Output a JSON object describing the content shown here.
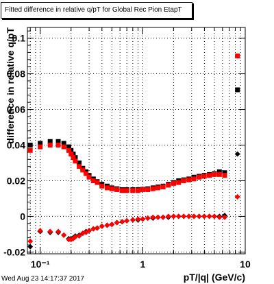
{
  "chart_data": {
    "type": "scatter",
    "title": "Fitted difference in relative q/pT for Global Rec Pion EtapT",
    "xlabel": "pT/|q| (GeV/c)",
    "ylabel": "difference in relative q/pT",
    "x_scale": "log",
    "xlim": [
      0.075,
      10
    ],
    "ylim": [
      -0.021,
      0.106
    ],
    "grid": true,
    "legend": "none",
    "x_ticks": [
      {
        "value": 0.1,
        "label": "10⁻¹"
      },
      {
        "value": 1,
        "label": "1"
      },
      {
        "value": 10,
        "label": "10"
      }
    ],
    "y_ticks": [
      {
        "value": -0.02,
        "label": "-0.02"
      },
      {
        "value": 0,
        "label": "0"
      },
      {
        "value": 0.02,
        "label": "0.02"
      },
      {
        "value": 0.04,
        "label": "0.04"
      },
      {
        "value": 0.06,
        "label": "0.06"
      },
      {
        "value": 0.08,
        "label": "0.08"
      },
      {
        "value": 0.1,
        "label": "0.1"
      }
    ],
    "colors": {
      "black": "#000000",
      "red": "#ff0000"
    },
    "series": [
      {
        "color": "black",
        "marker": "square",
        "x": [
          0.08,
          0.1,
          0.125,
          0.15,
          0.17,
          0.19,
          0.2,
          0.21,
          0.22,
          0.24,
          0.26,
          0.28,
          0.3,
          0.33,
          0.36,
          0.4,
          0.45,
          0.5,
          0.56,
          0.63,
          0.7,
          0.8,
          0.9,
          1.0,
          1.12,
          1.26,
          1.41,
          1.58,
          1.78,
          2.0,
          2.24,
          2.51,
          2.82,
          3.16,
          3.55,
          3.98,
          4.47,
          5.0,
          5.6,
          6.3,
          8.4
        ],
        "y": [
          0.04,
          0.041,
          0.042,
          0.042,
          0.041,
          0.039,
          0.037,
          0.035,
          0.033,
          0.03,
          0.027,
          0.025,
          0.023,
          0.021,
          0.0195,
          0.018,
          0.017,
          0.016,
          0.0155,
          0.015,
          0.015,
          0.015,
          0.015,
          0.0152,
          0.0155,
          0.016,
          0.0165,
          0.017,
          0.018,
          0.019,
          0.02,
          0.0205,
          0.021,
          0.022,
          0.0225,
          0.023,
          0.0235,
          0.024,
          0.025,
          0.0245,
          0.071
        ]
      },
      {
        "color": "red",
        "marker": "square",
        "x": [
          0.08,
          0.1,
          0.125,
          0.15,
          0.17,
          0.19,
          0.2,
          0.21,
          0.22,
          0.24,
          0.26,
          0.28,
          0.3,
          0.33,
          0.36,
          0.4,
          0.45,
          0.5,
          0.56,
          0.63,
          0.7,
          0.8,
          0.9,
          1.0,
          1.12,
          1.26,
          1.41,
          1.58,
          1.78,
          2.0,
          2.24,
          2.51,
          2.82,
          3.16,
          3.55,
          3.98,
          4.47,
          5.0,
          5.6,
          6.3,
          8.4
        ],
        "y": [
          0.037,
          0.039,
          0.04,
          0.04,
          0.039,
          0.037,
          0.035,
          0.033,
          0.031,
          0.028,
          0.026,
          0.024,
          0.022,
          0.02,
          0.019,
          0.017,
          0.016,
          0.0155,
          0.015,
          0.0145,
          0.0145,
          0.0145,
          0.0145,
          0.015,
          0.015,
          0.0155,
          0.016,
          0.0165,
          0.0175,
          0.0185,
          0.019,
          0.02,
          0.0205,
          0.021,
          0.022,
          0.0225,
          0.023,
          0.0235,
          0.0235,
          0.023,
          0.09
        ]
      },
      {
        "color": "black",
        "marker": "diamond",
        "x": [
          0.08,
          0.1,
          0.125,
          0.15,
          0.17,
          0.19,
          0.2,
          0.21,
          0.22,
          0.24,
          0.26,
          0.28,
          0.3,
          0.33,
          0.36,
          0.4,
          0.45,
          0.5,
          0.56,
          0.63,
          0.7,
          0.8,
          0.9,
          1.0,
          1.12,
          1.26,
          1.41,
          1.58,
          1.78,
          2.0,
          2.24,
          2.51,
          2.82,
          3.16,
          3.55,
          3.98,
          4.47,
          5.0,
          5.6,
          6.3,
          8.4
        ],
        "y": [
          -0.017,
          -0.0085,
          -0.009,
          -0.009,
          -0.0105,
          -0.0125,
          -0.0125,
          -0.012,
          -0.011,
          -0.0105,
          -0.0095,
          -0.0085,
          -0.008,
          -0.007,
          -0.0065,
          -0.0055,
          -0.005,
          -0.0045,
          -0.0035,
          -0.003,
          -0.0025,
          -0.002,
          -0.002,
          -0.0015,
          -0.001,
          -0.001,
          -0.0005,
          -0.0005,
          -0.0005,
          0.0,
          0.0,
          0.0,
          0.0,
          0.0,
          0.0,
          0.0,
          0.0,
          0.0,
          0.0,
          0.0005,
          0.035
        ]
      },
      {
        "color": "red",
        "marker": "diamond",
        "x": [
          0.08,
          0.1,
          0.125,
          0.15,
          0.17,
          0.19,
          0.2,
          0.21,
          0.22,
          0.24,
          0.26,
          0.28,
          0.3,
          0.33,
          0.36,
          0.4,
          0.45,
          0.5,
          0.56,
          0.63,
          0.7,
          0.8,
          0.9,
          1.0,
          1.12,
          1.26,
          1.41,
          1.58,
          1.78,
          2.0,
          2.24,
          2.51,
          2.82,
          3.16,
          3.55,
          3.98,
          4.47,
          5.0,
          5.6,
          6.3,
          8.4
        ],
        "y": [
          -0.014,
          -0.008,
          -0.0085,
          -0.0085,
          -0.0105,
          -0.013,
          -0.013,
          -0.0125,
          -0.0115,
          -0.011,
          -0.0095,
          -0.009,
          -0.008,
          -0.007,
          -0.0065,
          -0.0055,
          -0.005,
          -0.0045,
          -0.0035,
          -0.003,
          -0.0025,
          -0.002,
          -0.0015,
          -0.0015,
          -0.001,
          -0.0005,
          -0.0005,
          -0.0005,
          0.0,
          0.0,
          0.0,
          0.0,
          0.0,
          0.0,
          0.0,
          0.0,
          0.0,
          0.0,
          -0.0005,
          -0.0005,
          0.011
        ]
      }
    ]
  },
  "footer": {
    "datestamp": "Wed Aug 23 14:17:37 2017"
  }
}
